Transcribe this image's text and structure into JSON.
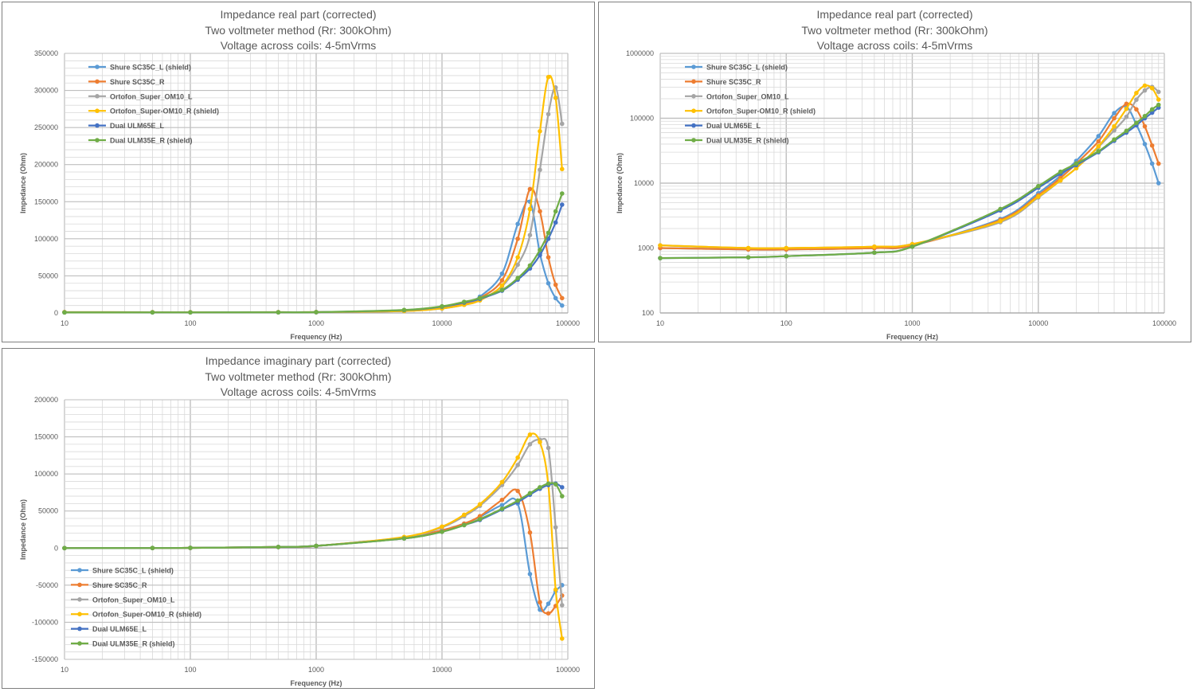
{
  "colors": {
    "series": [
      "#5b9bd5",
      "#ed7d31",
      "#a5a5a5",
      "#ffc000",
      "#4472c4",
      "#70ad47"
    ],
    "grid": "#d9d9d9",
    "axis_text": "#595959"
  },
  "chart_data": [
    {
      "type": "line",
      "title_lines": [
        "Impedance real part (corrected)",
        "Two voltmeter method (Rr: 300kOhm)",
        "Voltage across coils: 4-5mVrms"
      ],
      "xlabel": "Frequency (Hz)",
      "ylabel": "Impedance (Ohm)",
      "xscale": "log",
      "yscale": "linear",
      "xlim": [
        10,
        100000
      ],
      "ylim": [
        0,
        350000
      ],
      "x_ticks": [
        10,
        100,
        1000,
        10000,
        100000
      ],
      "x_tick_labels": [
        "10",
        "100",
        "1000",
        "10000",
        "100000"
      ],
      "y_ticks": [
        0,
        50000,
        100000,
        150000,
        200000,
        250000,
        300000,
        350000
      ],
      "y_tick_labels": [
        "0",
        "50000",
        "100000",
        "150000",
        "200000",
        "250000",
        "300000",
        "350000"
      ],
      "grid": true,
      "legend_position": "top-left",
      "x": [
        10,
        50,
        100,
        500,
        1000,
        5000,
        10000,
        15000,
        20000,
        30000,
        40000,
        50000,
        60000,
        70000,
        80000,
        90000
      ],
      "series": [
        {
          "name": "Shure SC35C_L (shield)",
          "values": [
            1000,
            950,
            950,
            1000,
            1100,
            2800,
            7000,
            13000,
            22000,
            53000,
            120000,
            150000,
            80000,
            40000,
            20000,
            10000
          ]
        },
        {
          "name": "Shure SC35C_R",
          "values": [
            1000,
            950,
            950,
            1000,
            1100,
            2700,
            6500,
            12000,
            20000,
            44000,
            100000,
            167000,
            137000,
            75000,
            38000,
            20000
          ]
        },
        {
          "name": "Ortofon_Super_OM10_L",
          "values": [
            1100,
            1000,
            1000,
            1050,
            1150,
            2500,
            6000,
            11000,
            17000,
            36000,
            65000,
            105000,
            193000,
            268000,
            304000,
            255000
          ]
        },
        {
          "name": "Ortofon_Super-OM10_R (shield)",
          "values": [
            1100,
            1000,
            1000,
            1050,
            1150,
            2600,
            6200,
            11000,
            17000,
            37000,
            75000,
            140000,
            245000,
            318000,
            290000,
            194000
          ]
        },
        {
          "name": "Dual ULM65E_L",
          "values": [
            700,
            720,
            750,
            850,
            1050,
            3800,
            8500,
            14000,
            19000,
            30000,
            45000,
            60000,
            78000,
            100000,
            122000,
            146000
          ]
        },
        {
          "name": "Dual ULM35E_R (shield)",
          "values": [
            700,
            720,
            750,
            850,
            1050,
            4000,
            9000,
            15000,
            20000,
            31000,
            47000,
            64000,
            85000,
            108000,
            137000,
            161000
          ]
        }
      ]
    },
    {
      "type": "line",
      "title_lines": [
        "Impedance real part (corrected)",
        "Two voltmeter method (Rr: 300kOhm)",
        "Voltage across coils: 4-5mVrms"
      ],
      "xlabel": "Frequency (Hz)",
      "ylabel": "Impedance (Ohm)",
      "xscale": "log",
      "yscale": "log",
      "xlim": [
        10,
        100000
      ],
      "ylim": [
        100,
        1000000
      ],
      "x_ticks": [
        10,
        100,
        1000,
        10000,
        100000
      ],
      "x_tick_labels": [
        "10",
        "100",
        "1000",
        "10000",
        "100000"
      ],
      "y_ticks": [
        100,
        1000,
        10000,
        100000,
        1000000
      ],
      "y_tick_labels": [
        "100",
        "1000",
        "10000",
        "100000",
        "1000000"
      ],
      "grid": true,
      "legend_position": "top-left",
      "x": [
        10,
        50,
        100,
        500,
        1000,
        5000,
        10000,
        15000,
        20000,
        30000,
        40000,
        50000,
        60000,
        70000,
        80000,
        90000
      ],
      "series": [
        {
          "name": "Shure SC35C_L (shield)",
          "values": [
            1000,
            950,
            950,
            1000,
            1100,
            2800,
            7000,
            13000,
            22000,
            53000,
            120000,
            150000,
            80000,
            40000,
            20000,
            10000
          ]
        },
        {
          "name": "Shure SC35C_R",
          "values": [
            1000,
            950,
            950,
            1000,
            1100,
            2700,
            6500,
            12000,
            20000,
            44000,
            100000,
            167000,
            137000,
            75000,
            38000,
            20000
          ]
        },
        {
          "name": "Ortofon_Super_OM10_L",
          "values": [
            1100,
            1000,
            1000,
            1050,
            1150,
            2500,
            6000,
            11000,
            17000,
            36000,
            65000,
            105000,
            193000,
            268000,
            304000,
            255000
          ]
        },
        {
          "name": "Ortofon_Super-OM10_R (shield)",
          "values": [
            1100,
            1000,
            1000,
            1050,
            1150,
            2600,
            6200,
            11000,
            17000,
            37000,
            75000,
            140000,
            245000,
            318000,
            290000,
            194000
          ]
        },
        {
          "name": "Dual ULM65E_L",
          "values": [
            700,
            720,
            750,
            850,
            1050,
            3800,
            8500,
            14000,
            19000,
            30000,
            45000,
            60000,
            78000,
            100000,
            122000,
            146000
          ]
        },
        {
          "name": "Dual ULM35E_R (shield)",
          "values": [
            700,
            720,
            750,
            850,
            1050,
            4000,
            9000,
            15000,
            20000,
            31000,
            47000,
            64000,
            85000,
            108000,
            137000,
            161000
          ]
        }
      ]
    },
    {
      "type": "line",
      "title_lines": [
        "Impedance imaginary part (corrected)",
        "Two voltmeter method (Rr: 300kOhm)",
        "Voltage across coils: 4-5mVrms"
      ],
      "xlabel": "Frequency (Hz)",
      "ylabel": "Impedance (Ohm)",
      "xscale": "log",
      "yscale": "linear",
      "xlim": [
        10,
        100000
      ],
      "ylim": [
        -150000,
        200000
      ],
      "x_ticks": [
        10,
        100,
        1000,
        10000,
        100000
      ],
      "x_tick_labels": [
        "10",
        "100",
        "1000",
        "10000",
        "100000"
      ],
      "y_ticks": [
        -150000,
        -100000,
        -50000,
        0,
        50000,
        100000,
        150000,
        200000
      ],
      "y_tick_labels": [
        "-150000",
        "-100000",
        "-50000",
        "0",
        "50000",
        "100000",
        "150000",
        "200000"
      ],
      "grid": true,
      "legend_position": "bottom-left",
      "x": [
        10,
        50,
        100,
        500,
        1000,
        5000,
        10000,
        15000,
        20000,
        30000,
        40000,
        50000,
        60000,
        70000,
        80000,
        90000
      ],
      "series": [
        {
          "name": "Shure SC35C_L (shield)",
          "values": [
            0,
            100,
            300,
            1500,
            3000,
            14000,
            24000,
            33000,
            42000,
            58000,
            60000,
            -35000,
            -83000,
            -75000,
            -58000,
            -50000
          ]
        },
        {
          "name": "Shure SC35C_R",
          "values": [
            0,
            100,
            300,
            1500,
            3000,
            14000,
            24000,
            33000,
            43000,
            65000,
            77000,
            21000,
            -73000,
            -88000,
            -78000,
            -64000
          ]
        },
        {
          "name": "Ortofon_Super_OM10_L",
          "values": [
            0,
            100,
            300,
            1500,
            3000,
            14000,
            28000,
            43000,
            57000,
            85000,
            112000,
            140000,
            146000,
            135000,
            28000,
            -77000
          ]
        },
        {
          "name": "Ortofon_Super-OM10_R (shield)",
          "values": [
            0,
            100,
            300,
            1500,
            3000,
            15000,
            29000,
            45000,
            59000,
            89000,
            122000,
            153000,
            143000,
            85000,
            -56000,
            -122000
          ]
        },
        {
          "name": "Dual ULM65E_L",
          "values": [
            0,
            100,
            300,
            1500,
            3000,
            13000,
            22000,
            31000,
            38000,
            52000,
            62000,
            72000,
            80000,
            85000,
            87000,
            82000
          ]
        },
        {
          "name": "Dual ULM35E_R (shield)",
          "values": [
            0,
            100,
            300,
            1500,
            3000,
            13000,
            22000,
            31000,
            39000,
            53000,
            64000,
            74000,
            82000,
            87000,
            86000,
            70000
          ]
        }
      ]
    }
  ]
}
